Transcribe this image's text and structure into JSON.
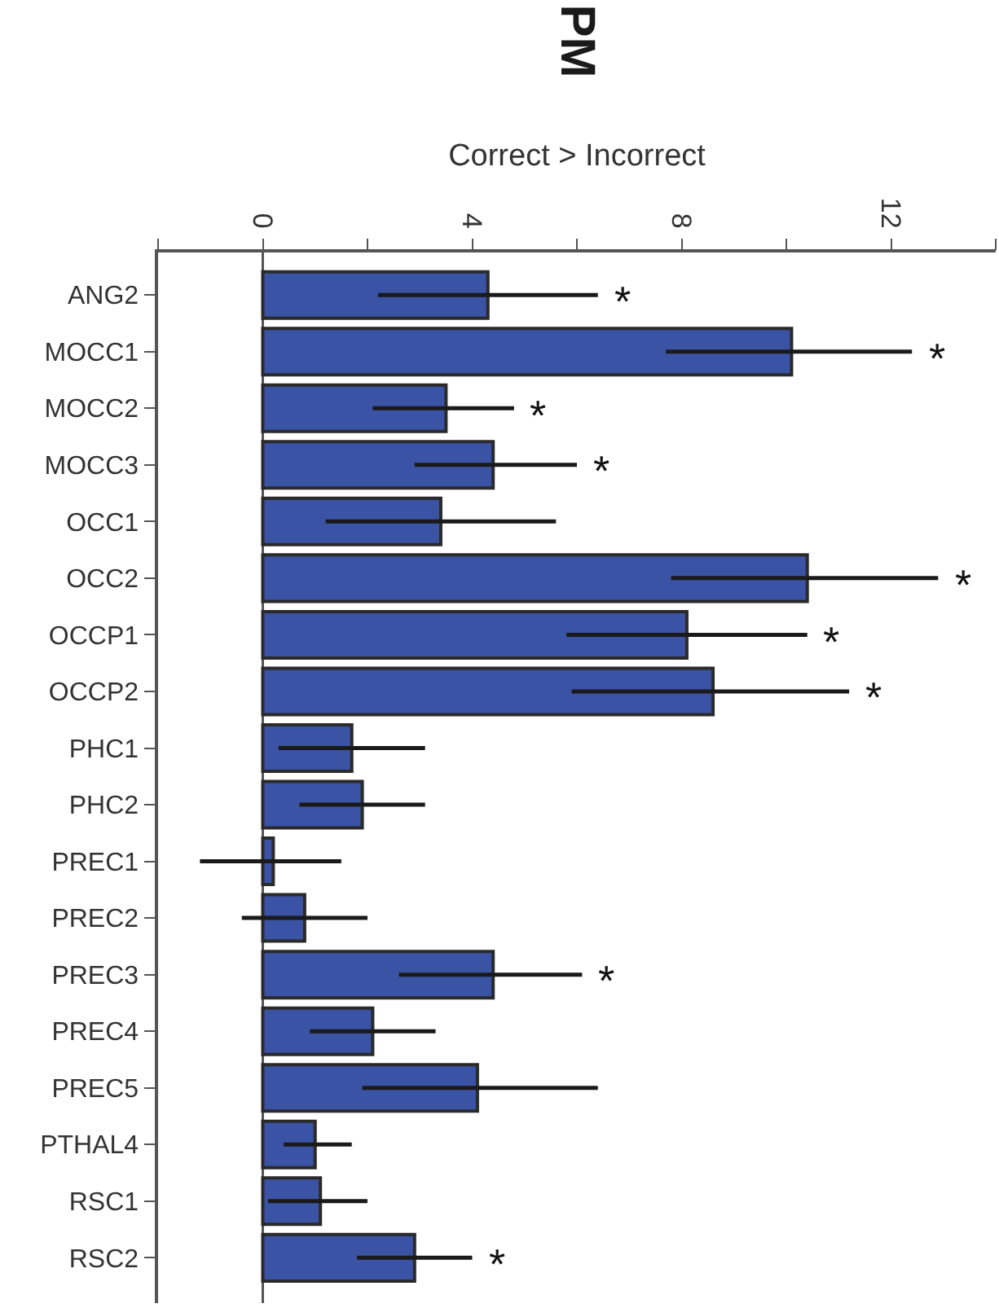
{
  "chart_data": {
    "type": "bar",
    "orientation": "horizontal",
    "title": "PM",
    "xlabel": "Correct > Incorrect",
    "categories": [
      "ANG2",
      "MOCC1",
      "MOCC2",
      "MOCC3",
      "OCC1",
      "OCC2",
      "OCCP1",
      "OCCP2",
      "PHC1",
      "PHC2",
      "PREC1",
      "PREC2",
      "PREC3",
      "PREC4",
      "PREC5",
      "PTHAL4",
      "RSC1",
      "RSC2"
    ],
    "values": [
      4.3,
      10.1,
      3.5,
      4.4,
      3.4,
      10.4,
      8.1,
      8.6,
      1.7,
      1.9,
      0.2,
      0.8,
      4.4,
      2.1,
      4.1,
      1.0,
      1.1,
      2.9
    ],
    "errors": [
      [
        2.2,
        6.4
      ],
      [
        7.7,
        12.4
      ],
      [
        2.1,
        4.8
      ],
      [
        2.9,
        6.0
      ],
      [
        1.2,
        5.6
      ],
      [
        7.8,
        12.9
      ],
      [
        5.8,
        10.4
      ],
      [
        5.9,
        11.2
      ],
      [
        0.3,
        3.1
      ],
      [
        0.7,
        3.1
      ],
      [
        -1.2,
        1.5
      ],
      [
        -0.4,
        2.0
      ],
      [
        2.6,
        6.1
      ],
      [
        0.9,
        3.3
      ],
      [
        1.9,
        6.4
      ],
      [
        0.4,
        1.7
      ],
      [
        0.1,
        2.0
      ],
      [
        1.8,
        4.0
      ]
    ],
    "color": "#3a53a4",
    "xlim": [
      -2,
      14
    ],
    "xticks": [
      {
        "value": -2,
        "label": null
      },
      0,
      {
        "value": 2,
        "label": null
      },
      4,
      {
        "value": 6,
        "label": null
      },
      8,
      {
        "value": 10,
        "label": null
      },
      12,
      {
        "value": 14,
        "label": null
      }
    ],
    "grid": false,
    "legend": false,
    "ref_lines": [
      {
        "axis": "x",
        "value": 0,
        "color": "#555555"
      }
    ],
    "annotations": [
      {
        "text": "*",
        "x": 6.4,
        "y": "ANG2"
      },
      {
        "text": "*",
        "x": 12.4,
        "y": "MOCC1"
      },
      {
        "text": "*",
        "x": 4.8,
        "y": "MOCC2"
      },
      {
        "text": "*",
        "x": 6.0,
        "y": "MOCC3"
      },
      {
        "text": "*",
        "x": 12.9,
        "y": "OCC2"
      },
      {
        "text": "*",
        "x": 10.4,
        "y": "OCCP1"
      },
      {
        "text": "*",
        "x": 11.2,
        "y": "OCCP2"
      },
      {
        "text": "*",
        "x": 6.1,
        "y": "PREC3"
      },
      {
        "text": "*",
        "x": 4.0,
        "y": "RSC2"
      }
    ]
  }
}
